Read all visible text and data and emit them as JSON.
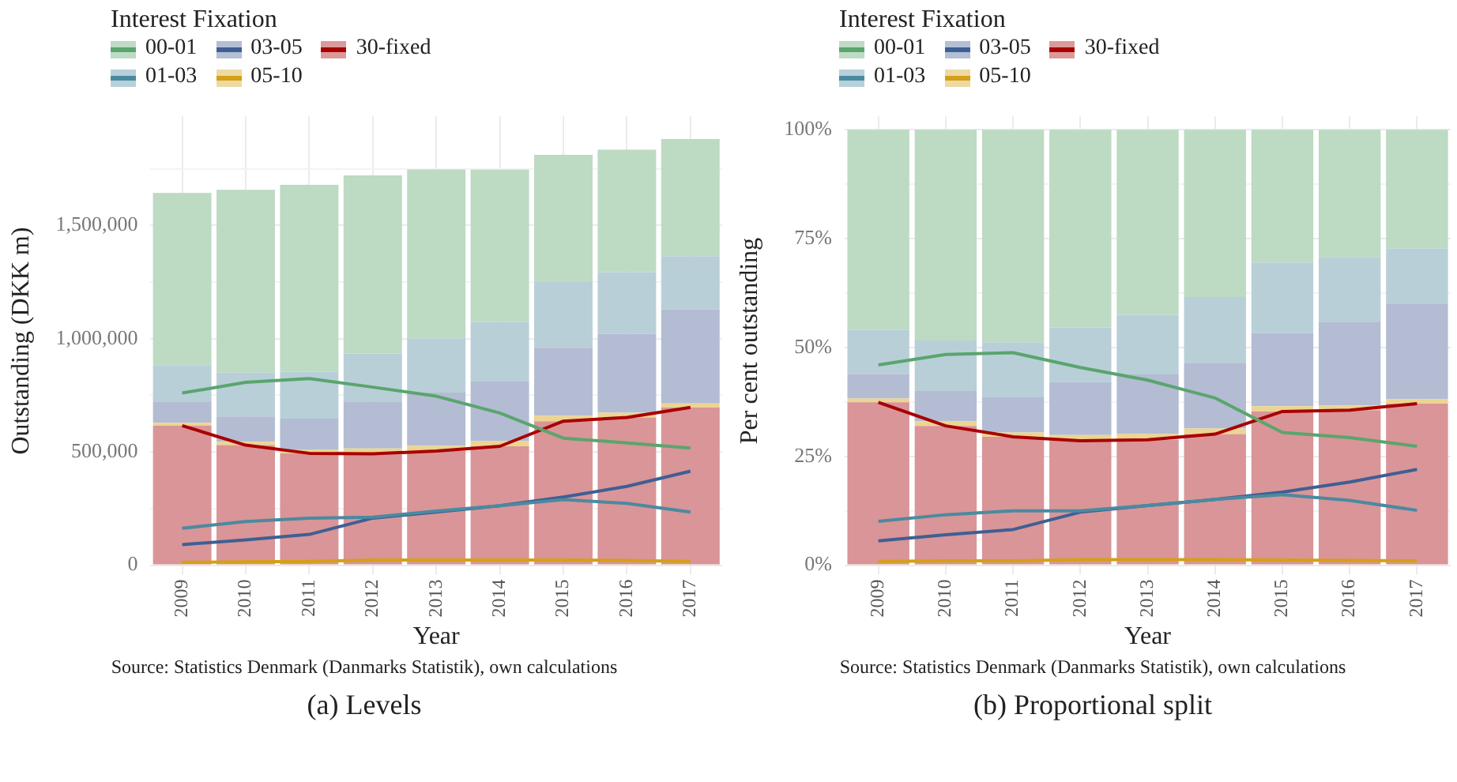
{
  "chart_data": [
    {
      "type": "bar",
      "stacked": true,
      "xlabel": "Year",
      "ylabel": "Outstanding (DKK m)",
      "legend_title": "Interest Fixation",
      "legend": "top left",
      "grid": true,
      "categories": [
        "2009",
        "2010",
        "2011",
        "2012",
        "2013",
        "2014",
        "2015",
        "2016",
        "2017"
      ],
      "ylim": [
        0,
        1980000
      ],
      "yticks": [
        {
          "value": 0,
          "label": "0"
        },
        {
          "value": 250000,
          "label": null
        },
        {
          "value": 500000,
          "label": "500,000"
        },
        {
          "value": 750000,
          "label": null
        },
        {
          "value": 1000000,
          "label": "1,000,000"
        },
        {
          "value": 1250000,
          "label": null
        },
        {
          "value": 1500000,
          "label": "1,500,000"
        },
        {
          "value": 1750000,
          "label": null
        }
      ],
      "series": [
        {
          "color": "#d99598",
          "values": [
            616000,
            530000,
            494000,
            492000,
            504000,
            525000,
            636000,
            652000,
            697000
          ]
        },
        {
          "color": "#ecd591",
          "values": [
            13000,
            15000,
            17000,
            23000,
            23000,
            23000,
            23000,
            21000,
            17000
          ]
        },
        {
          "color": "#b3bcd3",
          "values": [
            91000,
            112000,
            136000,
            208000,
            235000,
            263000,
            301000,
            348000,
            415000
          ]
        },
        {
          "color": "#b8cfd8",
          "values": [
            163000,
            193000,
            208000,
            212000,
            239000,
            263000,
            290000,
            273000,
            235000
          ]
        },
        {
          "color": "#bddac3",
          "values": [
            760000,
            807000,
            824000,
            786000,
            746000,
            672000,
            561000,
            540000,
            517000
          ]
        },
        {
          "type": "line",
          "name": "00-01",
          "color": "#5aa56e",
          "values": [
            760000,
            807000,
            824000,
            786000,
            746000,
            672000,
            561000,
            540000,
            517000
          ]
        },
        {
          "type": "line",
          "name": "01-03",
          "color": "#4a8aa0",
          "values": [
            163000,
            193000,
            208000,
            212000,
            239000,
            263000,
            290000,
            273000,
            235000
          ]
        },
        {
          "type": "line",
          "name": "03-05",
          "color": "#3f5f93",
          "values": [
            91000,
            112000,
            136000,
            208000,
            235000,
            263000,
            301000,
            348000,
            415000
          ]
        },
        {
          "type": "line",
          "name": "05-10",
          "color": "#d4a017",
          "values": [
            13000,
            15000,
            17000,
            23000,
            23000,
            23000,
            23000,
            21000,
            17000
          ]
        },
        {
          "type": "line",
          "name": "30-fixed",
          "color": "#a80000",
          "values": [
            616000,
            530000,
            494000,
            492000,
            504000,
            525000,
            636000,
            652000,
            697000
          ]
        }
      ],
      "annotations": [
        "Source: Statistics Denmark (Danmarks Statistik), own calculations",
        "(a) Levels"
      ]
    },
    {
      "type": "bar",
      "stacked": true,
      "xlabel": "Year",
      "ylabel": "Per cent outstanding",
      "legend_title": "Interest Fixation",
      "legend": "top left",
      "grid": true,
      "categories": [
        "2009",
        "2010",
        "2011",
        "2012",
        "2013",
        "2014",
        "2015",
        "2016",
        "2017"
      ],
      "ylim": [
        0,
        103
      ],
      "yticks": [
        {
          "value": 0,
          "label": "0%"
        },
        {
          "value": 12.5,
          "label": null
        },
        {
          "value": 25,
          "label": "25%"
        },
        {
          "value": 37.5,
          "label": null
        },
        {
          "value": 50,
          "label": "50%"
        },
        {
          "value": 62.5,
          "label": null
        },
        {
          "value": 75,
          "label": "75%"
        },
        {
          "value": 87.5,
          "label": null
        },
        {
          "value": 100,
          "label": "100%"
        }
      ],
      "series": [
        {
          "color": "#d99598",
          "values": [
            37.4,
            32.0,
            29.5,
            28.6,
            28.8,
            30.1,
            35.3,
            35.6,
            37.1
          ]
        },
        {
          "color": "#ecd591",
          "values": [
            0.9,
            1.0,
            1.0,
            1.3,
            1.3,
            1.3,
            1.2,
            1.1,
            1.0
          ]
        },
        {
          "color": "#b3bcd3",
          "values": [
            5.6,
            7.0,
            8.2,
            12.2,
            13.7,
            15.1,
            16.8,
            19.1,
            22.0
          ]
        },
        {
          "color": "#b8cfd8",
          "values": [
            10.1,
            11.6,
            12.5,
            12.5,
            13.7,
            15.1,
            16.2,
            14.9,
            12.6
          ]
        },
        {
          "color": "#bddac3",
          "values": [
            46.0,
            48.4,
            48.8,
            45.4,
            42.5,
            38.4,
            30.5,
            29.3,
            27.3
          ]
        },
        {
          "type": "line",
          "name": "00-01",
          "color": "#5aa56e",
          "values": [
            46.0,
            48.4,
            48.8,
            45.4,
            42.5,
            38.4,
            30.5,
            29.3,
            27.3
          ]
        },
        {
          "type": "line",
          "name": "01-03",
          "color": "#4a8aa0",
          "values": [
            10.1,
            11.6,
            12.5,
            12.5,
            13.7,
            15.1,
            16.2,
            14.9,
            12.6
          ]
        },
        {
          "type": "line",
          "name": "03-05",
          "color": "#3f5f93",
          "values": [
            5.6,
            7.0,
            8.2,
            12.2,
            13.7,
            15.1,
            16.8,
            19.1,
            22.0
          ]
        },
        {
          "type": "line",
          "name": "05-10",
          "color": "#d4a017",
          "values": [
            0.9,
            1.0,
            1.0,
            1.3,
            1.3,
            1.3,
            1.2,
            1.1,
            1.0
          ]
        },
        {
          "type": "line",
          "name": "30-fixed",
          "color": "#a80000",
          "values": [
            37.4,
            32.0,
            29.5,
            28.6,
            28.8,
            30.1,
            35.3,
            35.6,
            37.1
          ]
        }
      ],
      "annotations": [
        "Source: Statistics Denmark (Danmarks Statistik), own calculations",
        "(b) Proportional split"
      ]
    }
  ]
}
